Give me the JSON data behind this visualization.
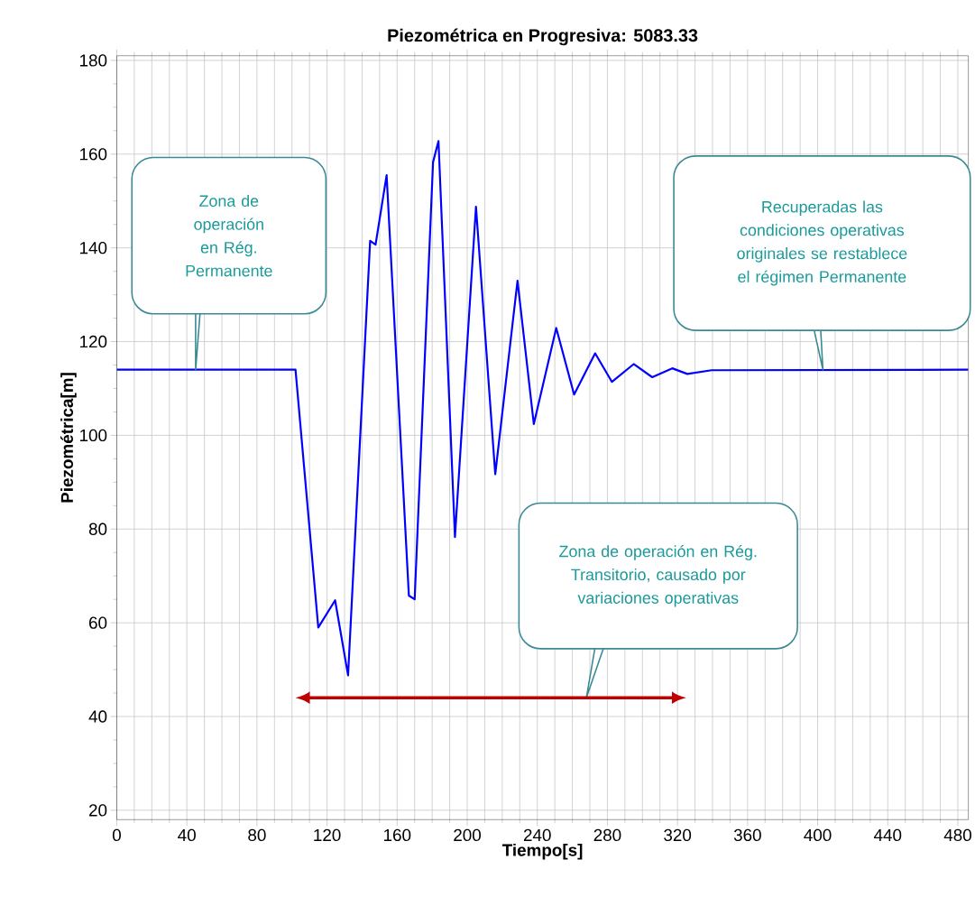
{
  "chart_data": {
    "type": "line",
    "title": "Piezométrica en Progresiva: 5083.33",
    "xlabel": "Tiempo[s]",
    "ylabel": "Piezométrica[m]",
    "xlim": [
      0,
      486
    ],
    "ylim": [
      18,
      181
    ],
    "xticks": [
      0,
      40,
      80,
      120,
      160,
      200,
      240,
      280,
      320,
      360,
      400,
      440,
      480
    ],
    "yticks": [
      20,
      40,
      60,
      80,
      100,
      120,
      140,
      160,
      180
    ],
    "grid": true,
    "marker": "none",
    "line_style": "solid",
    "series": [
      {
        "color": "#0000ff",
        "x": [
          0,
          102,
          115,
          124.6,
          132,
          144.6,
          147.7,
          154,
          166.7,
          170,
          180.5,
          183.6,
          193,
          205,
          216,
          228.7,
          238,
          250.8,
          261,
          273,
          282.6,
          295,
          305.6,
          317,
          325.6,
          339.5,
          486
        ],
        "values": [
          114,
          114,
          59,
          64.8,
          48.8,
          141.5,
          140.7,
          155.5,
          65.8,
          65,
          158.3,
          162.8,
          78.3,
          148.8,
          91.7,
          133,
          102.4,
          122.9,
          108.7,
          117.5,
          111.4,
          115.2,
          112.4,
          114.3,
          113.1,
          113.9,
          114
        ]
      }
    ],
    "annotations": [
      {
        "text": "Zona de operación en Rég. Permanente",
        "x": 45,
        "y": 114
      },
      {
        "text": "Recuperadas las condiciones operativas originales se restablece el régimen Permanente",
        "x": 403,
        "y": 114
      },
      "Zona de operación en Rég. Transitorio, causado por variaciones operativas"
    ]
  }
}
